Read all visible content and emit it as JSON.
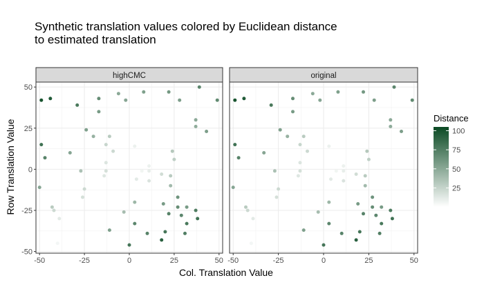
{
  "chart_data": {
    "type": "scatter",
    "title_lines": [
      "Synthetic translation values colored by Euclidean distance",
      "to estimated translation"
    ],
    "xlabel": "Col. Translation Value",
    "ylabel": "Row Translation Value",
    "xlim": [
      -52,
      52
    ],
    "ylim": [
      -51,
      53
    ],
    "xticks": [
      -50,
      -25,
      0,
      25,
      50
    ],
    "yticks": [
      -50,
      -25,
      0,
      25,
      50
    ],
    "facets": [
      "highCMC",
      "original"
    ],
    "legend": {
      "title": "Distance",
      "placement": "right",
      "range": [
        0,
        105
      ],
      "ticks": [
        25,
        50,
        75,
        100
      ],
      "color_low": "#ffffff",
      "color_high": "#0b4a24"
    },
    "points": [
      {
        "x": -49,
        "y": 42,
        "d": 100
      },
      {
        "x": -44,
        "y": 43,
        "d": 96
      },
      {
        "x": -29,
        "y": 39,
        "d": 78
      },
      {
        "x": -17,
        "y": 43,
        "d": 66
      },
      {
        "x": -17,
        "y": 35,
        "d": 58
      },
      {
        "x": -6,
        "y": 46,
        "d": 50
      },
      {
        "x": -2,
        "y": 42,
        "d": 52
      },
      {
        "x": 8,
        "y": 47,
        "d": 55
      },
      {
        "x": 22,
        "y": 47,
        "d": 60
      },
      {
        "x": 28,
        "y": 42,
        "d": 56
      },
      {
        "x": 39,
        "y": 50,
        "d": 70
      },
      {
        "x": 49,
        "y": 42,
        "d": 68
      },
      {
        "x": 37,
        "y": 30,
        "d": 50
      },
      {
        "x": 37,
        "y": 26,
        "d": 48
      },
      {
        "x": 43,
        "y": 23,
        "d": 56
      },
      {
        "x": -49,
        "y": 15,
        "d": 82
      },
      {
        "x": -47,
        "y": 7,
        "d": 72
      },
      {
        "x": -33,
        "y": 10,
        "d": 52
      },
      {
        "x": -24,
        "y": 24,
        "d": 55
      },
      {
        "x": -20,
        "y": 20,
        "d": 45
      },
      {
        "x": -11,
        "y": 20,
        "d": 30
      },
      {
        "x": -13,
        "y": 15,
        "d": 24
      },
      {
        "x": -9,
        "y": 11,
        "d": 22
      },
      {
        "x": 3,
        "y": 14,
        "d": 8
      },
      {
        "x": 24,
        "y": 11,
        "d": 32
      },
      {
        "x": 25,
        "y": 6,
        "d": 28
      },
      {
        "x": -13,
        "y": 4,
        "d": 15
      },
      {
        "x": -13,
        "y": -1,
        "d": 18
      },
      {
        "x": -14,
        "y": -4,
        "d": 14
      },
      {
        "x": -27,
        "y": -1,
        "d": 36
      },
      {
        "x": -50,
        "y": -11,
        "d": 52
      },
      {
        "x": -25,
        "y": -12,
        "d": 22
      },
      {
        "x": -26,
        "y": -17,
        "d": 18
      },
      {
        "x": 4,
        "y": -6,
        "d": 12
      },
      {
        "x": 7,
        "y": -1,
        "d": 6
      },
      {
        "x": 11,
        "y": 2,
        "d": 8
      },
      {
        "x": 11,
        "y": -1,
        "d": 10
      },
      {
        "x": 11,
        "y": -7,
        "d": 16
      },
      {
        "x": 18,
        "y": -3,
        "d": 20
      },
      {
        "x": 23,
        "y": -4,
        "d": 30
      },
      {
        "x": 23,
        "y": -10,
        "d": 40
      },
      {
        "x": -43,
        "y": -23,
        "d": 30
      },
      {
        "x": -42,
        "y": -25,
        "d": 22
      },
      {
        "x": -39,
        "y": -30,
        "d": 12
      },
      {
        "x": -40,
        "y": -45,
        "d": 5
      },
      {
        "x": -3,
        "y": -26,
        "d": 38
      },
      {
        "x": 3,
        "y": -20,
        "d": 42
      },
      {
        "x": 3,
        "y": -33,
        "d": 70
      },
      {
        "x": 10,
        "y": -39,
        "d": 72
      },
      {
        "x": -11,
        "y": -37,
        "d": 55
      },
      {
        "x": 0,
        "y": -46,
        "d": 80
      },
      {
        "x": 19,
        "y": -21,
        "d": 58
      },
      {
        "x": 22,
        "y": -27,
        "d": 72
      },
      {
        "x": 27,
        "y": -17,
        "d": 62
      },
      {
        "x": 27,
        "y": -23,
        "d": 66
      },
      {
        "x": 29,
        "y": -28,
        "d": 70
      },
      {
        "x": 32,
        "y": -23,
        "d": 58
      },
      {
        "x": 32,
        "y": -33,
        "d": 78
      },
      {
        "x": 31,
        "y": -39,
        "d": 75
      },
      {
        "x": 37,
        "y": -25,
        "d": 76
      },
      {
        "x": 38,
        "y": -30,
        "d": 82
      },
      {
        "x": 20,
        "y": -38,
        "d": 80
      },
      {
        "x": 18,
        "y": -43,
        "d": 92
      }
    ]
  }
}
